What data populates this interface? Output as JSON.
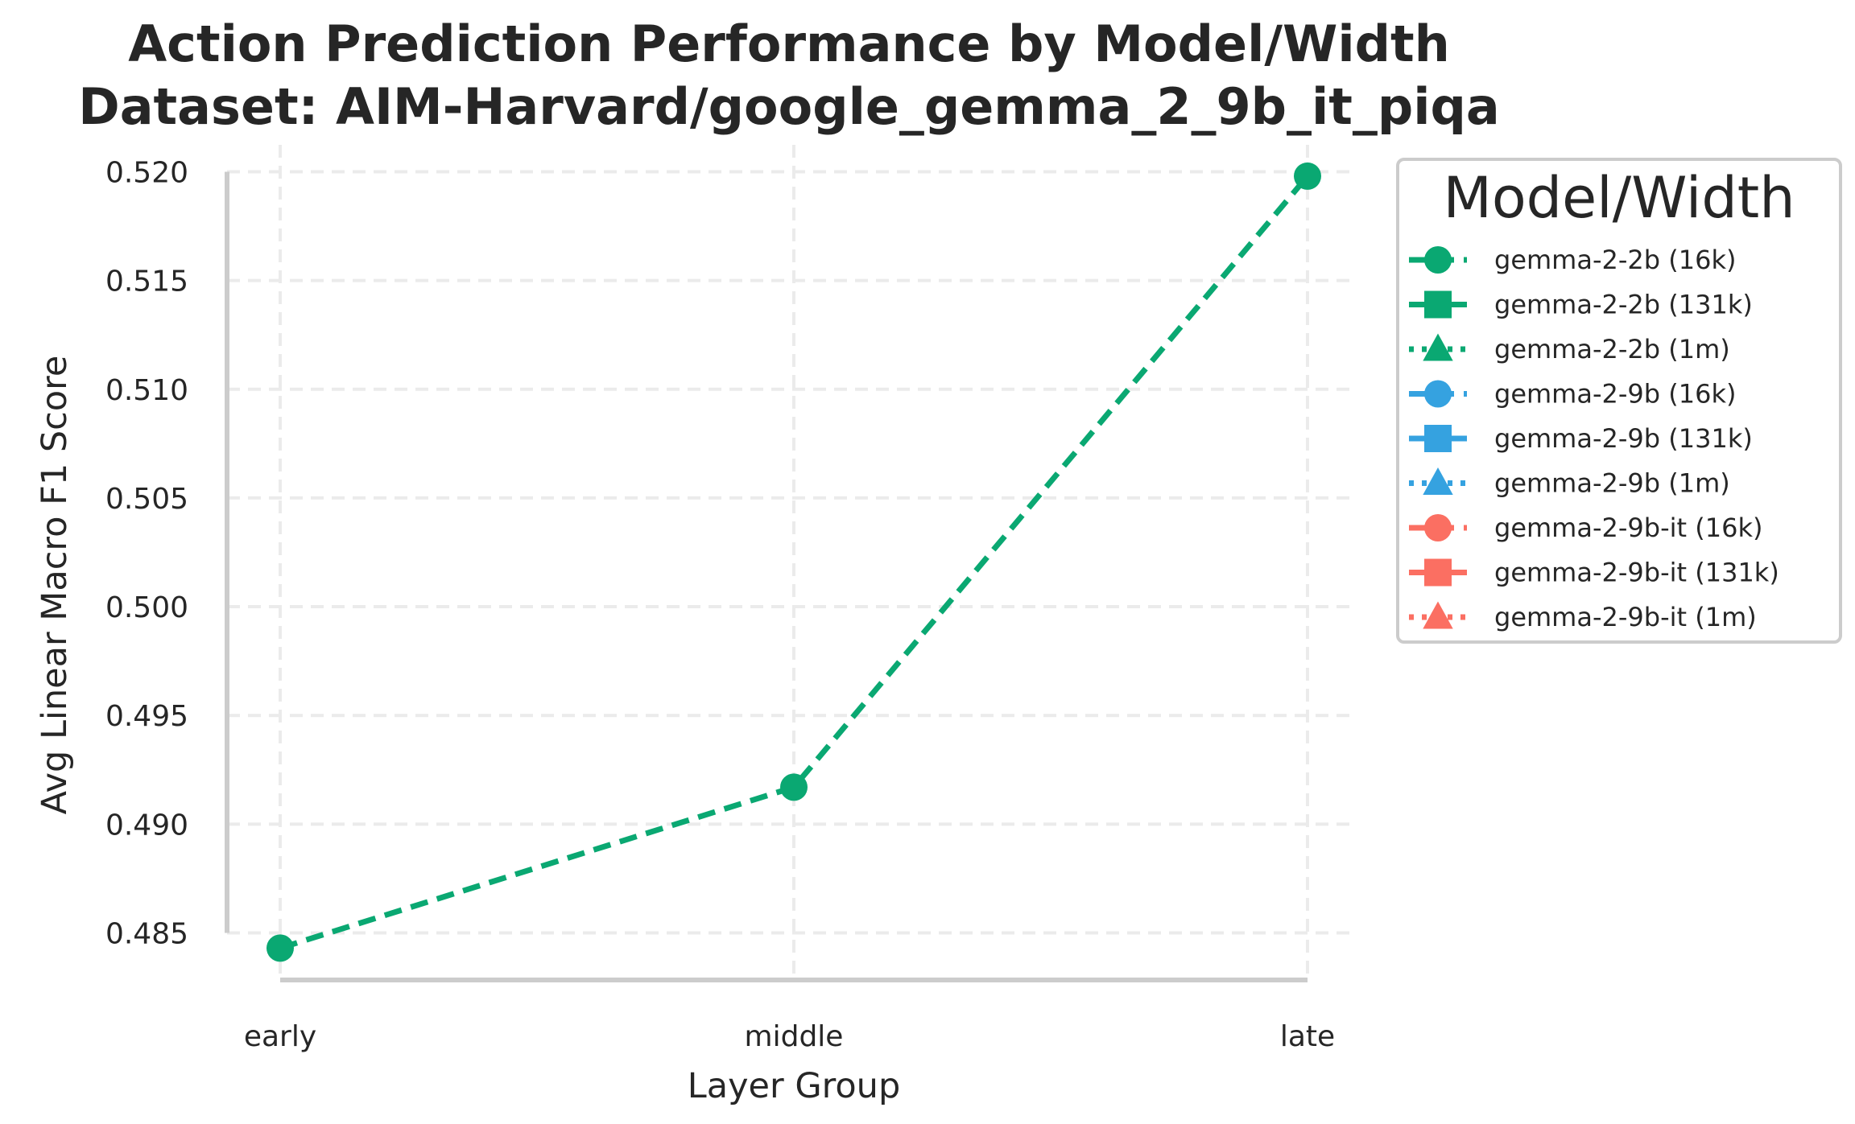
{
  "chart_data": {
    "type": "line",
    "title": "Action Prediction Performance by Model/Width",
    "subtitle": "Dataset: AIM-Harvard/google_gemma_2_9b_it_piqa",
    "xlabel": "Layer Group",
    "ylabel": "Avg Linear Macro F1 Score",
    "categories": [
      "early",
      "middle",
      "late"
    ],
    "ylim": [
      0.4835,
      0.5205
    ],
    "yticks": [
      0.485,
      0.49,
      0.495,
      0.5,
      0.505,
      0.51,
      0.515,
      0.52
    ],
    "ytick_labels": [
      "0.485",
      "0.490",
      "0.495",
      "0.500",
      "0.505",
      "0.510",
      "0.515",
      "0.520"
    ],
    "grid": true,
    "legend_placement": "outside-right",
    "legend_title": "Model/Width",
    "series": [
      {
        "name": "gemma-2-2b (16k)",
        "color": "#0aa872",
        "marker": "circle",
        "linestyle": "dashed",
        "values": [
          0.4843,
          0.4917,
          0.5198
        ]
      }
    ],
    "legend_entries": [
      {
        "label": "gemma-2-2b (16k)",
        "color": "#0aa872",
        "marker": "circle",
        "linestyle": "dashed"
      },
      {
        "label": "gemma-2-2b (131k)",
        "color": "#0aa872",
        "marker": "square",
        "linestyle": "solid"
      },
      {
        "label": "gemma-2-2b (1m)",
        "color": "#0aa872",
        "marker": "triangle",
        "linestyle": "dotted"
      },
      {
        "label": "gemma-2-9b (16k)",
        "color": "#35a2e0",
        "marker": "circle",
        "linestyle": "dashed"
      },
      {
        "label": "gemma-2-9b (131k)",
        "color": "#35a2e0",
        "marker": "square",
        "linestyle": "solid"
      },
      {
        "label": "gemma-2-9b (1m)",
        "color": "#35a2e0",
        "marker": "triangle",
        "linestyle": "dotted"
      },
      {
        "label": "gemma-2-9b-it (16k)",
        "color": "#fb6f62",
        "marker": "circle",
        "linestyle": "dashed"
      },
      {
        "label": "gemma-2-9b-it (131k)",
        "color": "#fb6f62",
        "marker": "square",
        "linestyle": "solid"
      },
      {
        "label": "gemma-2-9b-it (1m)",
        "color": "#fb6f62",
        "marker": "triangle",
        "linestyle": "dotted"
      }
    ]
  }
}
